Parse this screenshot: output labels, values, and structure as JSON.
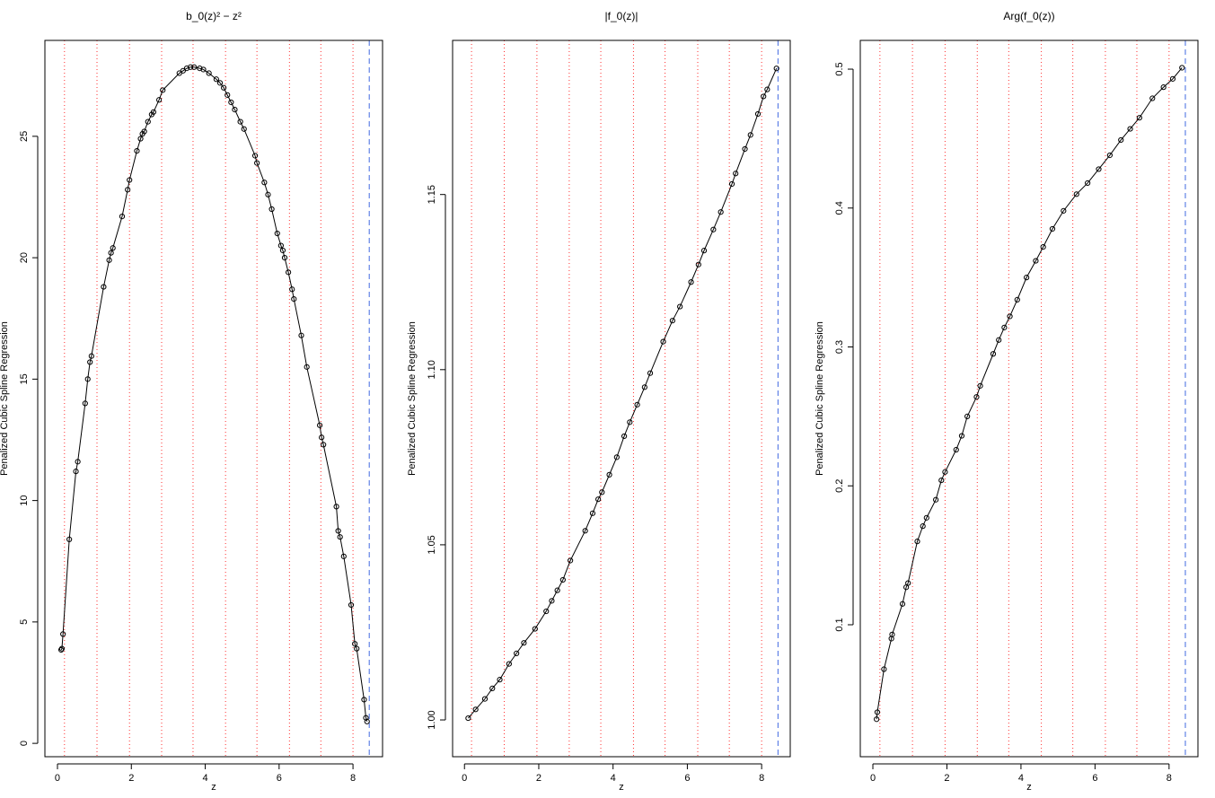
{
  "chart_data": [
    {
      "type": "scatter",
      "title": "b_0(z)² − z²",
      "xlabel": "z",
      "ylabel": "Penalized Cubic Spline Regression",
      "x": [
        0.1,
        0.12,
        0.15,
        0.32,
        0.5,
        0.55,
        0.75,
        0.82,
        0.88,
        0.92,
        1.25,
        1.4,
        1.45,
        1.5,
        1.75,
        1.9,
        1.95,
        2.15,
        2.25,
        2.3,
        2.35,
        2.45,
        2.55,
        2.6,
        2.75,
        2.85,
        3.3,
        3.4,
        3.5,
        3.6,
        3.7,
        3.85,
        3.95,
        4.1,
        4.3,
        4.4,
        4.5,
        4.6,
        4.7,
        4.8,
        4.95,
        5.05,
        5.35,
        5.4,
        5.6,
        5.7,
        5.8,
        5.95,
        6.05,
        6.1,
        6.15,
        6.25,
        6.35,
        6.4,
        6.6,
        6.75,
        7.1,
        7.15,
        7.2,
        7.55,
        7.6,
        7.65,
        7.75,
        7.95,
        8.05,
        8.1,
        8.3,
        8.35,
        8.38
      ],
      "values": [
        3.85,
        3.9,
        4.5,
        8.4,
        11.2,
        11.6,
        14.0,
        15.0,
        15.7,
        15.95,
        18.8,
        19.9,
        20.2,
        20.4,
        21.7,
        22.8,
        23.2,
        24.4,
        24.9,
        25.1,
        25.2,
        25.6,
        25.9,
        26.0,
        26.5,
        26.9,
        27.6,
        27.7,
        27.8,
        27.85,
        27.85,
        27.8,
        27.75,
        27.6,
        27.35,
        27.2,
        27.0,
        26.7,
        26.4,
        26.1,
        25.6,
        25.3,
        24.2,
        23.9,
        23.1,
        22.6,
        22.0,
        21.0,
        20.5,
        20.3,
        20.0,
        19.4,
        18.7,
        18.3,
        16.8,
        15.5,
        13.1,
        12.6,
        12.3,
        9.75,
        8.75,
        8.5,
        7.7,
        5.7,
        4.1,
        3.9,
        1.8,
        1.05,
        0.9
      ],
      "knots": [
        0.19,
        1.07,
        1.95,
        2.82,
        3.67,
        4.55,
        5.4,
        6.28,
        7.13,
        8.0
      ],
      "knot_color": "#ff3030",
      "boundary": 8.44,
      "boundary_color": "#4169e1",
      "color": "#000000",
      "xlim": [
        -0.34,
        8.8
      ],
      "xticks": [
        0,
        2,
        4,
        6,
        8
      ],
      "ylim": [
        -0.55,
        28.95
      ],
      "yticks": [
        0,
        5,
        10,
        15,
        20,
        25
      ]
    },
    {
      "type": "scatter",
      "title": "|f_0(z)|",
      "xlabel": "z",
      "ylabel": "Penalized Cubic Spline Regression",
      "x": [
        0.1,
        0.3,
        0.55,
        0.75,
        0.95,
        1.2,
        1.4,
        1.6,
        1.9,
        2.2,
        2.35,
        2.5,
        2.65,
        2.85,
        3.25,
        3.45,
        3.6,
        3.7,
        3.9,
        4.1,
        4.3,
        4.45,
        4.65,
        4.85,
        5.0,
        5.35,
        5.6,
        5.8,
        6.1,
        6.3,
        6.45,
        6.7,
        6.9,
        7.2,
        7.3,
        7.55,
        7.7,
        7.9,
        8.05,
        8.15,
        8.4
      ],
      "values": [
        1.0005,
        1.003,
        1.006,
        1.009,
        1.0115,
        1.016,
        1.019,
        1.022,
        1.026,
        1.031,
        1.034,
        1.037,
        1.04,
        1.0455,
        1.054,
        1.059,
        1.063,
        1.065,
        1.07,
        1.075,
        1.081,
        1.085,
        1.09,
        1.095,
        1.099,
        1.108,
        1.114,
        1.118,
        1.125,
        1.13,
        1.134,
        1.14,
        1.145,
        1.153,
        1.156,
        1.163,
        1.167,
        1.173,
        1.178,
        1.18,
        1.186
      ],
      "knots": [
        0.19,
        1.07,
        1.95,
        2.82,
        3.67,
        4.55,
        5.4,
        6.28,
        7.13,
        8.0
      ],
      "knot_color": "#ff3030",
      "boundary": 8.44,
      "boundary_color": "#4169e1",
      "color": "#000000",
      "xlim": [
        -0.32,
        8.77
      ],
      "xticks": [
        0,
        2,
        4,
        6,
        8
      ],
      "ylim": [
        0.9895,
        1.194
      ],
      "yticks": [
        {
          "value": 1,
          "label": "1.00"
        },
        1.05,
        {
          "value": 1.1,
          "label": "1.10"
        },
        1.15
      ]
    },
    {
      "type": "scatter",
      "title": "Arg(f_0(z))",
      "xlabel": "z",
      "ylabel": "Penalized Cubic Spline Regression",
      "x": [
        0.1,
        0.12,
        0.3,
        0.5,
        0.52,
        0.8,
        0.9,
        0.95,
        1.2,
        1.35,
        1.45,
        1.7,
        1.85,
        1.95,
        2.25,
        2.4,
        2.55,
        2.8,
        2.9,
        3.25,
        3.4,
        3.55,
        3.7,
        3.9,
        4.15,
        4.4,
        4.6,
        4.85,
        5.15,
        5.5,
        5.8,
        6.1,
        6.4,
        6.7,
        6.95,
        7.2,
        7.55,
        7.85,
        8.1,
        8.35
      ],
      "values": [
        0.032,
        0.037,
        0.068,
        0.09,
        0.093,
        0.115,
        0.127,
        0.13,
        0.16,
        0.171,
        0.177,
        0.19,
        0.204,
        0.21,
        0.226,
        0.236,
        0.25,
        0.264,
        0.272,
        0.295,
        0.305,
        0.314,
        0.322,
        0.334,
        0.35,
        0.362,
        0.372,
        0.385,
        0.398,
        0.41,
        0.418,
        0.428,
        0.438,
        0.449,
        0.457,
        0.465,
        0.479,
        0.487,
        0.493,
        0.501
      ],
      "knots": [
        0.19,
        1.07,
        1.95,
        2.82,
        3.67,
        4.55,
        5.4,
        6.28,
        7.13,
        8.0
      ],
      "knot_color": "#ff3030",
      "boundary": 8.44,
      "boundary_color": "#4169e1",
      "color": "#000000",
      "xlim": [
        -0.34,
        8.78
      ],
      "xticks": [
        0,
        2,
        4,
        6,
        8
      ],
      "ylim": [
        0.005,
        0.5207
      ],
      "yticks": [
        0.1,
        0.2,
        0.3,
        0.4,
        0.5
      ]
    }
  ]
}
